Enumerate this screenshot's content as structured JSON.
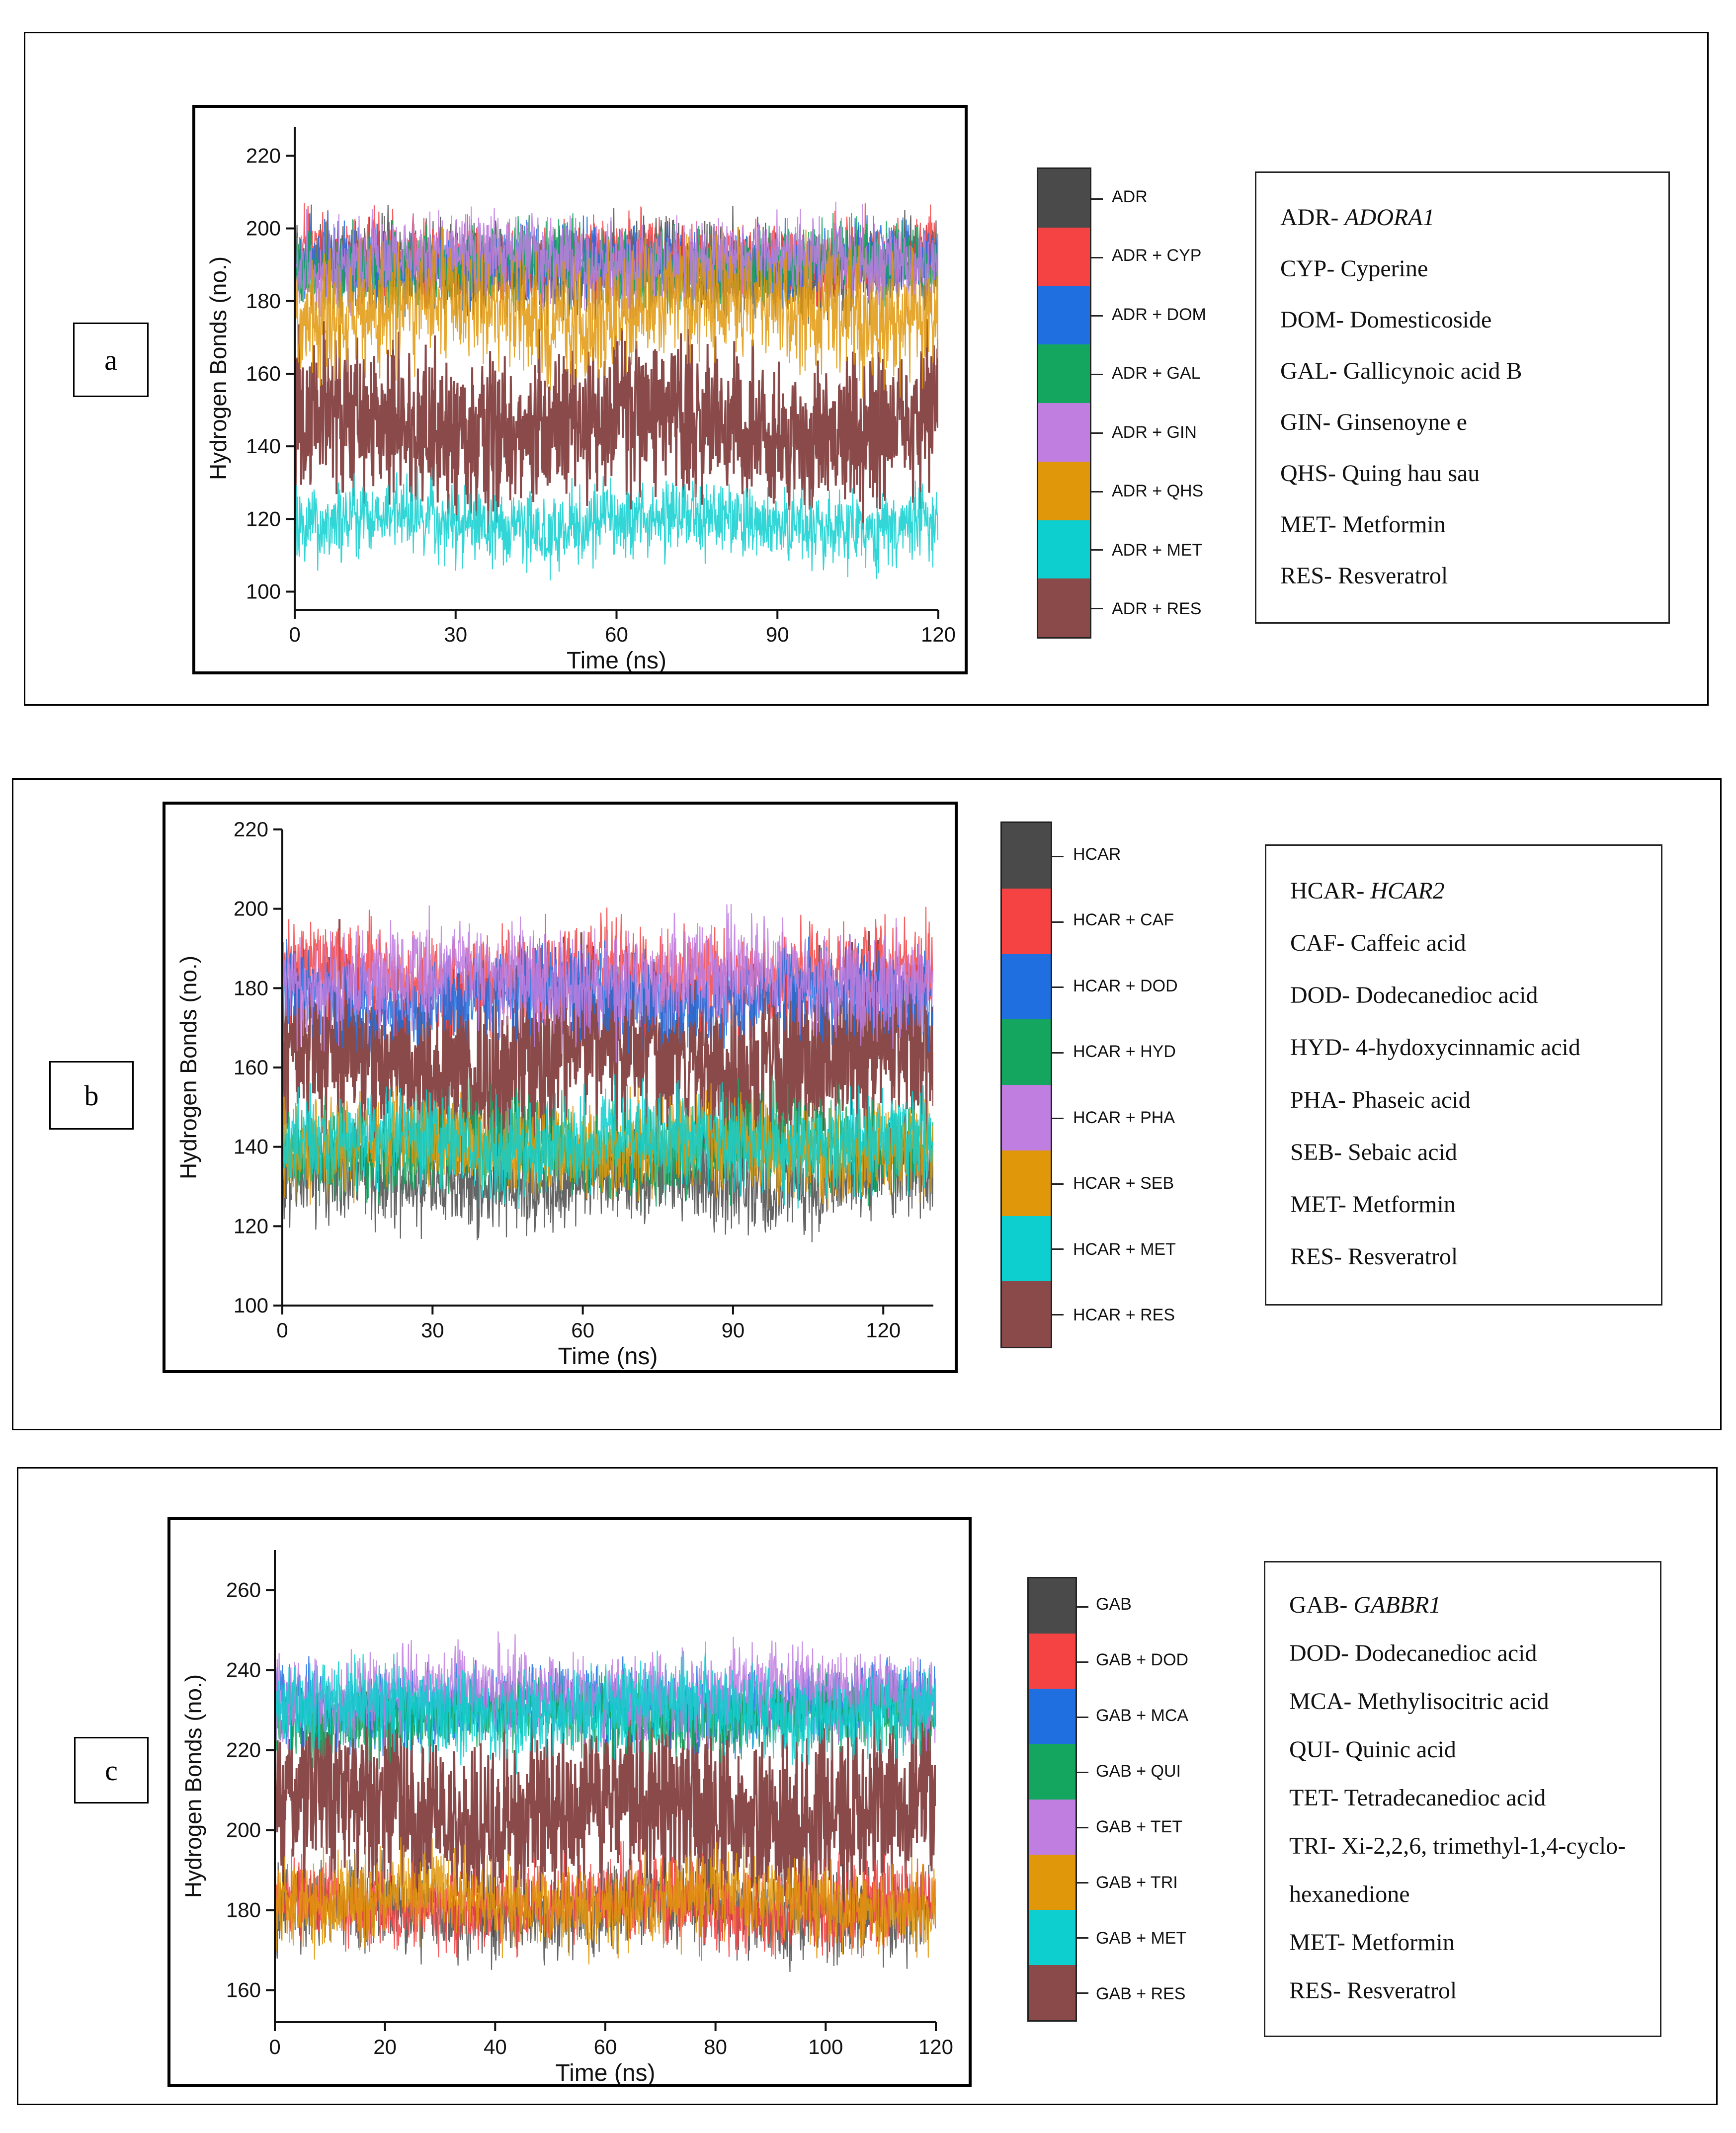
{
  "panels": [
    {
      "id": "a",
      "letter": "a",
      "colorbar": {
        "labels": [
          "ADR",
          "ADR + CYP",
          "ADR + DOM",
          "ADR + GAL",
          "ADR + GIN",
          "ADR + QHS",
          "ADR + MET",
          "ADR + RES"
        ],
        "colors": [
          "#4a4a4a",
          "#f54343",
          "#1f6fe0",
          "#14a65e",
          "#c07ee0",
          "#e0980a",
          "#0ecfcf",
          "#8b4a4a"
        ]
      },
      "legend": [
        {
          "code": "ADR- ",
          "name": "ADORA1",
          "italic": true
        },
        {
          "code": "CYP- ",
          "name": "Cyperine",
          "italic": false
        },
        {
          "code": "DOM- ",
          "name": "Domesticoside",
          "italic": false
        },
        {
          "code": "GAL- ",
          "name": "Gallicynoic acid B",
          "italic": false
        },
        {
          "code": "GIN- ",
          "name": "Ginsenoyne e",
          "italic": false
        },
        {
          "code": "QHS- ",
          "name": "Quing hau sau",
          "italic": false
        },
        {
          "code": "MET- ",
          "name": "Metformin",
          "italic": false
        },
        {
          "code": "RES- ",
          "name": "Resveratrol",
          "italic": false
        }
      ]
    },
    {
      "id": "b",
      "letter": "b",
      "colorbar": {
        "labels": [
          "HCAR",
          "HCAR + CAF",
          "HCAR + DOD",
          "HCAR + HYD",
          "HCAR + PHA",
          "HCAR + SEB",
          "HCAR + MET",
          "HCAR + RES"
        ],
        "colors": [
          "#4a4a4a",
          "#f54343",
          "#1f6fe0",
          "#14a65e",
          "#c07ee0",
          "#e0980a",
          "#0ecfcf",
          "#8b4a4a"
        ]
      },
      "legend": [
        {
          "code": "HCAR- ",
          "name": "HCAR2",
          "italic": true
        },
        {
          "code": "CAF- ",
          "name": "Caffeic acid",
          "italic": false
        },
        {
          "code": "DOD- ",
          "name": "Dodecanedioc acid",
          "italic": false
        },
        {
          "code": "HYD- ",
          "name": "4-hydoxycinnamic acid",
          "italic": false
        },
        {
          "code": "PHA- ",
          "name": "Phaseic acid",
          "italic": false
        },
        {
          "code": "SEB- ",
          "name": "Sebaic acid",
          "italic": false
        },
        {
          "code": "MET- ",
          "name": "Metformin",
          "italic": false
        },
        {
          "code": "RES- ",
          "name": "Resveratrol",
          "italic": false
        }
      ]
    },
    {
      "id": "c",
      "letter": "c",
      "colorbar": {
        "labels": [
          "GAB",
          "GAB + DOD",
          "GAB + MCA",
          "GAB + QUI",
          "GAB + TET",
          "GAB + TRI",
          "GAB + MET",
          "GAB + RES"
        ],
        "colors": [
          "#4a4a4a",
          "#f54343",
          "#1f6fe0",
          "#14a65e",
          "#c07ee0",
          "#e0980a",
          "#0ecfcf",
          "#8b4a4a"
        ]
      },
      "legend": [
        {
          "code": "GAB- ",
          "name": "GABBR1",
          "italic": true
        },
        {
          "code": "DOD- ",
          "name": "Dodecanedioc acid",
          "italic": false
        },
        {
          "code": "MCA- ",
          "name": "Methylisocitric acid",
          "italic": false
        },
        {
          "code": "QUI- ",
          "name": "Quinic acid",
          "italic": false
        },
        {
          "code": "TET- ",
          "name": "Tetradecanedioc acid",
          "italic": false
        },
        {
          "code": "TRI- ",
          "name": "Xi-2,2,6, trimethyl-1,4-cyclo-",
          "italic": false
        },
        {
          "code": "",
          "name": "hexanedione",
          "italic": false
        },
        {
          "code": "MET- ",
          "name": "Metformin",
          "italic": false
        },
        {
          "code": "RES- ",
          "name": "Resveratrol",
          "italic": false
        }
      ]
    }
  ],
  "chart_data": [
    {
      "type": "line",
      "title": "",
      "xlabel": "Time (ns)",
      "ylabel": "Hydrogen Bonds (no.)",
      "xlim": [
        0,
        120
      ],
      "ylim": [
        95,
        228
      ],
      "xticks": [
        0,
        30,
        60,
        90,
        120
      ],
      "yticks": [
        100,
        120,
        140,
        160,
        180,
        200,
        220
      ],
      "series": [
        {
          "name": "ADR",
          "color": "#4a4a4a",
          "mean": 190,
          "noise": 9
        },
        {
          "name": "ADR + CYP",
          "color": "#f54343",
          "mean": 192,
          "noise": 8
        },
        {
          "name": "ADR + DOM",
          "color": "#1f6fe0",
          "mean": 190,
          "noise": 8
        },
        {
          "name": "ADR + GAL",
          "color": "#14a65e",
          "mean": 190,
          "noise": 8
        },
        {
          "name": "ADR + GIN",
          "color": "#c07ee0",
          "mean": 191,
          "noise": 9
        },
        {
          "name": "ADR + QHS",
          "color": "#e0980a",
          "mean": 178,
          "noise": 13
        },
        {
          "name": "ADR + MET",
          "color": "#0ecfcf",
          "mean": 119,
          "noise": 8
        },
        {
          "name": "ADR + RES",
          "color": "#8b4a4a",
          "mean": 146,
          "noise": 16
        }
      ]
    },
    {
      "type": "line",
      "title": "",
      "xlabel": "Time (ns)",
      "ylabel": "Hydrogen Bonds (no.)",
      "xlim": [
        0,
        130
      ],
      "ylim": [
        100,
        220
      ],
      "xticks": [
        0,
        30,
        60,
        90,
        120
      ],
      "yticks": [
        100,
        120,
        140,
        160,
        180,
        200,
        220
      ],
      "series": [
        {
          "name": "HCAR",
          "color": "#4a4a4a",
          "mean": 132,
          "noise": 9
        },
        {
          "name": "HCAR + CAF",
          "color": "#f54343",
          "mean": 183,
          "noise": 9
        },
        {
          "name": "HCAR + DOD",
          "color": "#1f6fe0",
          "mean": 178,
          "noise": 8
        },
        {
          "name": "HCAR + HYD",
          "color": "#14a65e",
          "mean": 140,
          "noise": 9
        },
        {
          "name": "HCAR + PHA",
          "color": "#c07ee0",
          "mean": 182,
          "noise": 10
        },
        {
          "name": "HCAR + SEB",
          "color": "#e0980a",
          "mean": 140,
          "noise": 9
        },
        {
          "name": "HCAR + MET",
          "color": "#0ecfcf",
          "mean": 141,
          "noise": 9
        },
        {
          "name": "HCAR + RES",
          "color": "#8b4a4a",
          "mean": 162,
          "noise": 18
        }
      ]
    },
    {
      "type": "line",
      "title": "",
      "xlabel": "Time (ns)",
      "ylabel": "Hydrogen Bonds (no.)",
      "xlim": [
        0,
        120
      ],
      "ylim": [
        152,
        270
      ],
      "xticks": [
        0,
        20,
        40,
        60,
        80,
        100,
        120
      ],
      "yticks": [
        160,
        180,
        200,
        220,
        240,
        260
      ],
      "series": [
        {
          "name": "GAB",
          "color": "#4a4a4a",
          "mean": 180,
          "noise": 8
        },
        {
          "name": "GAB + DOD",
          "color": "#f54343",
          "mean": 181,
          "noise": 8
        },
        {
          "name": "GAB + MCA",
          "color": "#1f6fe0",
          "mean": 231,
          "noise": 7
        },
        {
          "name": "GAB + QUI",
          "color": "#14a65e",
          "mean": 229,
          "noise": 7
        },
        {
          "name": "GAB + TET",
          "color": "#c07ee0",
          "mean": 234,
          "noise": 8
        },
        {
          "name": "GAB + TRI",
          "color": "#e0980a",
          "mean": 182,
          "noise": 8
        },
        {
          "name": "GAB + MET",
          "color": "#0ecfcf",
          "mean": 230,
          "noise": 8
        },
        {
          "name": "GAB + RES",
          "color": "#8b4a4a",
          "mean": 205,
          "noise": 17
        }
      ]
    }
  ]
}
